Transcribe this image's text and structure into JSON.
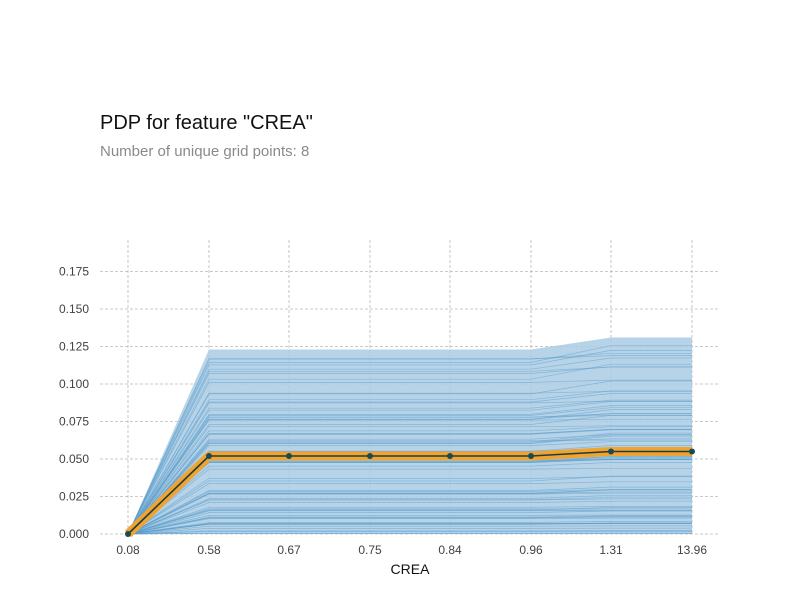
{
  "chart_data": {
    "type": "line",
    "title": "PDP for feature \"CREA\"",
    "subtitle": "Number of unique grid points: 8",
    "xlabel": "CREA",
    "ylabel": "",
    "categories": [
      "0.08",
      "0.58",
      "0.67",
      "0.75",
      "0.84",
      "0.96",
      "1.31",
      "13.96"
    ],
    "ylim": [
      0,
      0.19
    ],
    "yticks": [
      "0.000",
      "0.025",
      "0.050",
      "0.075",
      "0.100",
      "0.125",
      "0.150",
      "0.175"
    ],
    "ytick_values": [
      0,
      0.025,
      0.05,
      0.075,
      0.1,
      0.125,
      0.15,
      0.175
    ],
    "grid": true,
    "series": [
      {
        "values": [
          0.0,
          0.052,
          0.052,
          0.052,
          0.052,
          0.052,
          0.055,
          0.055
        ]
      }
    ],
    "ice_band": {
      "upper": [
        0.0,
        0.123,
        0.123,
        0.123,
        0.123,
        0.123,
        0.131,
        0.131
      ],
      "lower": [
        0.0,
        0.0,
        0.0,
        0.0,
        0.0,
        0.0,
        0.0,
        0.0
      ]
    },
    "colors": {
      "ice_lines": "#5b9ccb",
      "ice_fill": "#a9cbe4",
      "pdp_line": "#1f3c45",
      "pdp_highlight": "#f0a430",
      "grid": "#b9b9b9",
      "markers": "#1a4a57"
    }
  }
}
